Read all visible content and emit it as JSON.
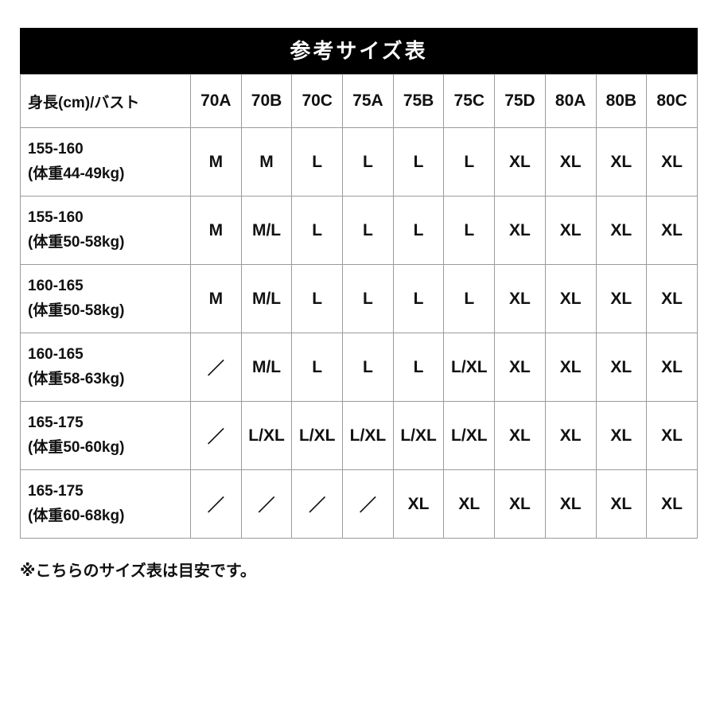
{
  "title": "参考サイズ表",
  "note": "※こちらのサイズ表は目安です。",
  "table": {
    "corner_label": "身長(cm)/バスト",
    "columns": [
      "70A",
      "70B",
      "70C",
      "75A",
      "75B",
      "75C",
      "75D",
      "80A",
      "80B",
      "80C"
    ],
    "rows": [
      {
        "height": "155-160",
        "weight": "(体重44-49kg)",
        "values": [
          "M",
          "M",
          "L",
          "L",
          "L",
          "L",
          "XL",
          "XL",
          "XL",
          "XL"
        ]
      },
      {
        "height": "155-160",
        "weight": "(体重50-58kg)",
        "values": [
          "M",
          "M/L",
          "L",
          "L",
          "L",
          "L",
          "XL",
          "XL",
          "XL",
          "XL"
        ]
      },
      {
        "height": "160-165",
        "weight": "(体重50-58kg)",
        "values": [
          "M",
          "M/L",
          "L",
          "L",
          "L",
          "L",
          "XL",
          "XL",
          "XL",
          "XL"
        ]
      },
      {
        "height": "160-165",
        "weight": "(体重58-63kg)",
        "values": [
          "／",
          "M/L",
          "L",
          "L",
          "L",
          "L/XL",
          "XL",
          "XL",
          "XL",
          "XL"
        ]
      },
      {
        "height": "165-175",
        "weight": "(体重50-60kg)",
        "values": [
          "／",
          "L/XL",
          "L/XL",
          "L/XL",
          "L/XL",
          "L/XL",
          "XL",
          "XL",
          "XL",
          "XL"
        ]
      },
      {
        "height": "165-175",
        "weight": "(体重60-68kg)",
        "values": [
          "／",
          "／",
          "／",
          "／",
          "XL",
          "XL",
          "XL",
          "XL",
          "XL",
          "XL"
        ]
      }
    ]
  }
}
